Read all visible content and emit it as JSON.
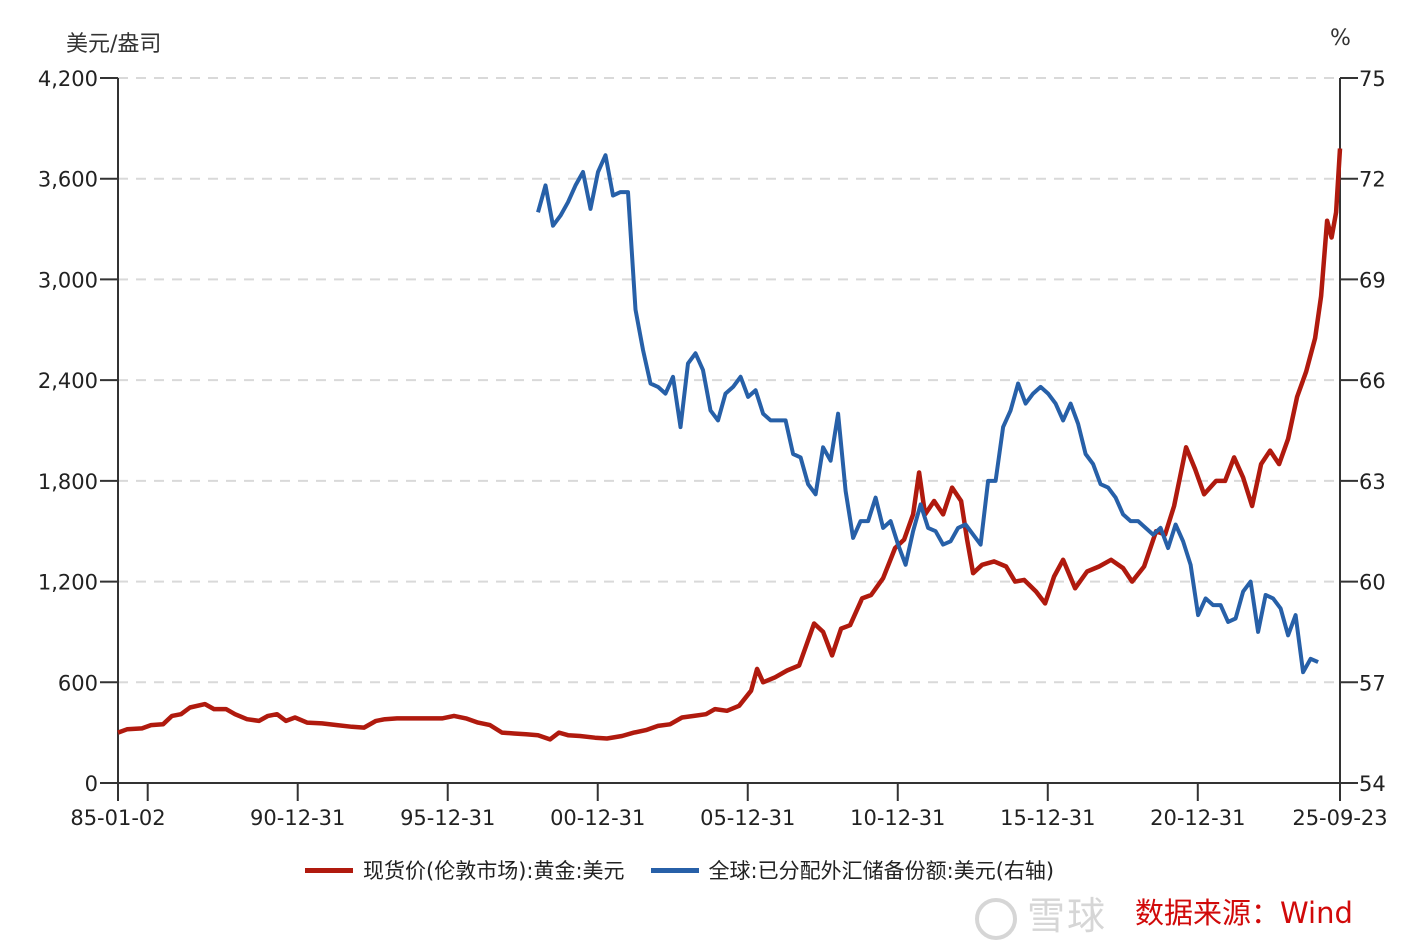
{
  "chart_data": {
    "type": "line",
    "title": "",
    "left_axis_label": "美元/盎司",
    "right_axis_label": "%",
    "y_left": {
      "min": 0,
      "max": 4200,
      "ticks": [
        0,
        600,
        1200,
        1800,
        2400,
        3000,
        3600,
        4200
      ],
      "tick_labels": [
        "0",
        "600",
        "1,200",
        "1,800",
        "2,400",
        "3,000",
        "3,600",
        "4,200"
      ]
    },
    "y_right": {
      "min": 54,
      "max": 75,
      "ticks": [
        54,
        57,
        60,
        63,
        66,
        69,
        72,
        75
      ],
      "tick_labels": [
        "54",
        "57",
        "60",
        "63",
        "66",
        "69",
        "72",
        "75"
      ]
    },
    "x_axis": {
      "start": 1985.0,
      "end": 2025.73,
      "tick_positions": [
        1985.0,
        1985.99,
        1990.99,
        1995.99,
        2000.99,
        2005.99,
        2010.99,
        2015.99,
        2020.99,
        2025.73
      ],
      "tick_labels": [
        "85-01-02",
        "",
        "90-12-31",
        "95-12-31",
        "00-12-31",
        "05-12-31",
        "10-12-31",
        "15-12-31",
        "20-12-31",
        "25-09-23"
      ]
    },
    "grid": "horizontal dashed",
    "legend_position": "bottom",
    "series": [
      {
        "name": "现货价(伦敦市场):黄金:美元",
        "axis": "left",
        "color": "#b01a0e",
        "points": [
          [
            1985.0,
            300
          ],
          [
            1985.3,
            320
          ],
          [
            1985.8,
            325
          ],
          [
            1986.1,
            345
          ],
          [
            1986.5,
            350
          ],
          [
            1986.8,
            400
          ],
          [
            1987.1,
            410
          ],
          [
            1987.4,
            450
          ],
          [
            1987.9,
            470
          ],
          [
            1988.2,
            440
          ],
          [
            1988.6,
            440
          ],
          [
            1988.9,
            410
          ],
          [
            1989.3,
            380
          ],
          [
            1989.7,
            370
          ],
          [
            1990.0,
            400
          ],
          [
            1990.3,
            410
          ],
          [
            1990.6,
            370
          ],
          [
            1990.9,
            390
          ],
          [
            1991.3,
            360
          ],
          [
            1991.8,
            355
          ],
          [
            1992.3,
            345
          ],
          [
            1992.8,
            335
          ],
          [
            1993.2,
            330
          ],
          [
            1993.6,
            370
          ],
          [
            1993.9,
            380
          ],
          [
            1994.3,
            385
          ],
          [
            1994.8,
            385
          ],
          [
            1995.3,
            385
          ],
          [
            1995.8,
            385
          ],
          [
            1996.2,
            400
          ],
          [
            1996.6,
            385
          ],
          [
            1997.0,
            360
          ],
          [
            1997.4,
            345
          ],
          [
            1997.8,
            300
          ],
          [
            1998.2,
            295
          ],
          [
            1998.6,
            290
          ],
          [
            1999.0,
            285
          ],
          [
            1999.4,
            260
          ],
          [
            1999.7,
            300
          ],
          [
            2000.0,
            285
          ],
          [
            2000.4,
            280
          ],
          [
            2000.9,
            270
          ],
          [
            2001.3,
            265
          ],
          [
            2001.8,
            280
          ],
          [
            2002.2,
            300
          ],
          [
            2002.6,
            315
          ],
          [
            2003.0,
            340
          ],
          [
            2003.4,
            350
          ],
          [
            2003.8,
            390
          ],
          [
            2004.2,
            400
          ],
          [
            2004.6,
            410
          ],
          [
            2004.9,
            440
          ],
          [
            2005.3,
            430
          ],
          [
            2005.7,
            460
          ],
          [
            2006.1,
            550
          ],
          [
            2006.3,
            680
          ],
          [
            2006.5,
            600
          ],
          [
            2006.9,
            630
          ],
          [
            2007.3,
            670
          ],
          [
            2007.7,
            700
          ],
          [
            2008.0,
            850
          ],
          [
            2008.2,
            950
          ],
          [
            2008.5,
            900
          ],
          [
            2008.8,
            760
          ],
          [
            2009.1,
            920
          ],
          [
            2009.4,
            940
          ],
          [
            2009.8,
            1100
          ],
          [
            2010.1,
            1120
          ],
          [
            2010.5,
            1220
          ],
          [
            2010.9,
            1400
          ],
          [
            2011.2,
            1450
          ],
          [
            2011.5,
            1600
          ],
          [
            2011.7,
            1850
          ],
          [
            2011.9,
            1600
          ],
          [
            2012.2,
            1680
          ],
          [
            2012.5,
            1600
          ],
          [
            2012.8,
            1760
          ],
          [
            2013.1,
            1680
          ],
          [
            2013.3,
            1450
          ],
          [
            2013.5,
            1250
          ],
          [
            2013.8,
            1300
          ],
          [
            2014.2,
            1320
          ],
          [
            2014.6,
            1290
          ],
          [
            2014.9,
            1200
          ],
          [
            2015.2,
            1210
          ],
          [
            2015.6,
            1140
          ],
          [
            2015.9,
            1070
          ],
          [
            2016.2,
            1230
          ],
          [
            2016.5,
            1330
          ],
          [
            2016.9,
            1160
          ],
          [
            2017.3,
            1260
          ],
          [
            2017.7,
            1290
          ],
          [
            2018.1,
            1330
          ],
          [
            2018.5,
            1280
          ],
          [
            2018.8,
            1200
          ],
          [
            2019.2,
            1290
          ],
          [
            2019.6,
            1500
          ],
          [
            2019.9,
            1480
          ],
          [
            2020.2,
            1650
          ],
          [
            2020.6,
            2000
          ],
          [
            2020.9,
            1870
          ],
          [
            2021.2,
            1720
          ],
          [
            2021.6,
            1800
          ],
          [
            2021.9,
            1800
          ],
          [
            2022.2,
            1940
          ],
          [
            2022.5,
            1820
          ],
          [
            2022.8,
            1650
          ],
          [
            2023.1,
            1900
          ],
          [
            2023.4,
            1980
          ],
          [
            2023.7,
            1900
          ],
          [
            2024.0,
            2050
          ],
          [
            2024.3,
            2300
          ],
          [
            2024.6,
            2450
          ],
          [
            2024.9,
            2650
          ],
          [
            2025.1,
            2900
          ],
          [
            2025.3,
            3350
          ],
          [
            2025.45,
            3250
          ],
          [
            2025.6,
            3400
          ],
          [
            2025.73,
            3780
          ]
        ]
      },
      {
        "name": "全球:已分配外汇储备份额:美元(右轴)",
        "axis": "right",
        "color": "#2760a8",
        "points": [
          [
            1999.0,
            71.0
          ],
          [
            1999.25,
            71.8
          ],
          [
            1999.5,
            70.6
          ],
          [
            1999.75,
            70.9
          ],
          [
            2000.0,
            71.3
          ],
          [
            2000.25,
            71.8
          ],
          [
            2000.5,
            72.2
          ],
          [
            2000.75,
            71.1
          ],
          [
            2001.0,
            72.2
          ],
          [
            2001.25,
            72.7
          ],
          [
            2001.5,
            71.5
          ],
          [
            2001.75,
            71.6
          ],
          [
            2002.0,
            71.6
          ],
          [
            2002.25,
            68.1
          ],
          [
            2002.5,
            66.9
          ],
          [
            2002.75,
            65.9
          ],
          [
            2003.0,
            65.8
          ],
          [
            2003.25,
            65.6
          ],
          [
            2003.5,
            66.1
          ],
          [
            2003.75,
            64.6
          ],
          [
            2004.0,
            66.5
          ],
          [
            2004.25,
            66.8
          ],
          [
            2004.5,
            66.3
          ],
          [
            2004.75,
            65.1
          ],
          [
            2005.0,
            64.8
          ],
          [
            2005.25,
            65.6
          ],
          [
            2005.5,
            65.8
          ],
          [
            2005.75,
            66.1
          ],
          [
            2006.0,
            65.5
          ],
          [
            2006.25,
            65.7
          ],
          [
            2006.5,
            65.0
          ],
          [
            2006.75,
            64.8
          ],
          [
            2007.0,
            64.8
          ],
          [
            2007.25,
            64.8
          ],
          [
            2007.5,
            63.8
          ],
          [
            2007.75,
            63.7
          ],
          [
            2008.0,
            62.9
          ],
          [
            2008.25,
            62.6
          ],
          [
            2008.5,
            64.0
          ],
          [
            2008.75,
            63.6
          ],
          [
            2009.0,
            65.0
          ],
          [
            2009.25,
            62.7
          ],
          [
            2009.5,
            61.3
          ],
          [
            2009.75,
            61.8
          ],
          [
            2010.0,
            61.8
          ],
          [
            2010.25,
            62.5
          ],
          [
            2010.5,
            61.6
          ],
          [
            2010.75,
            61.8
          ],
          [
            2011.0,
            61.1
          ],
          [
            2011.25,
            60.5
          ],
          [
            2011.5,
            61.5
          ],
          [
            2011.75,
            62.3
          ],
          [
            2012.0,
            61.6
          ],
          [
            2012.25,
            61.5
          ],
          [
            2012.5,
            61.1
          ],
          [
            2012.75,
            61.2
          ],
          [
            2013.0,
            61.6
          ],
          [
            2013.25,
            61.7
          ],
          [
            2013.5,
            61.4
          ],
          [
            2013.75,
            61.1
          ],
          [
            2014.0,
            63.0
          ],
          [
            2014.25,
            63.0
          ],
          [
            2014.5,
            64.6
          ],
          [
            2014.75,
            65.1
          ],
          [
            2015.0,
            65.9
          ],
          [
            2015.25,
            65.3
          ],
          [
            2015.5,
            65.6
          ],
          [
            2015.75,
            65.8
          ],
          [
            2016.0,
            65.6
          ],
          [
            2016.25,
            65.3
          ],
          [
            2016.5,
            64.8
          ],
          [
            2016.75,
            65.3
          ],
          [
            2017.0,
            64.7
          ],
          [
            2017.25,
            63.8
          ],
          [
            2017.5,
            63.5
          ],
          [
            2017.75,
            62.9
          ],
          [
            2018.0,
            62.8
          ],
          [
            2018.25,
            62.5
          ],
          [
            2018.5,
            62.0
          ],
          [
            2018.75,
            61.8
          ],
          [
            2019.0,
            61.8
          ],
          [
            2019.25,
            61.6
          ],
          [
            2019.5,
            61.4
          ],
          [
            2019.75,
            61.6
          ],
          [
            2020.0,
            61.0
          ],
          [
            2020.25,
            61.7
          ],
          [
            2020.5,
            61.2
          ],
          [
            2020.75,
            60.5
          ],
          [
            2021.0,
            59.0
          ],
          [
            2021.25,
            59.5
          ],
          [
            2021.5,
            59.3
          ],
          [
            2021.75,
            59.3
          ],
          [
            2022.0,
            58.8
          ],
          [
            2022.25,
            58.9
          ],
          [
            2022.5,
            59.7
          ],
          [
            2022.75,
            60.0
          ],
          [
            2023.0,
            58.5
          ],
          [
            2023.25,
            59.6
          ],
          [
            2023.5,
            59.5
          ],
          [
            2023.75,
            59.2
          ],
          [
            2024.0,
            58.4
          ],
          [
            2024.25,
            59.0
          ],
          [
            2024.5,
            57.3
          ],
          [
            2024.75,
            57.7
          ],
          [
            2025.0,
            57.6
          ]
        ]
      }
    ]
  },
  "legend": {
    "items": [
      {
        "label": "现货价(伦敦市场):黄金:美元",
        "color": "#b01a0e"
      },
      {
        "label": "全球:已分配外汇储备份额:美元(右轴)",
        "color": "#2760a8"
      }
    ]
  },
  "watermark": {
    "text": "雪球"
  },
  "source": {
    "text": "数据来源：Wind"
  }
}
